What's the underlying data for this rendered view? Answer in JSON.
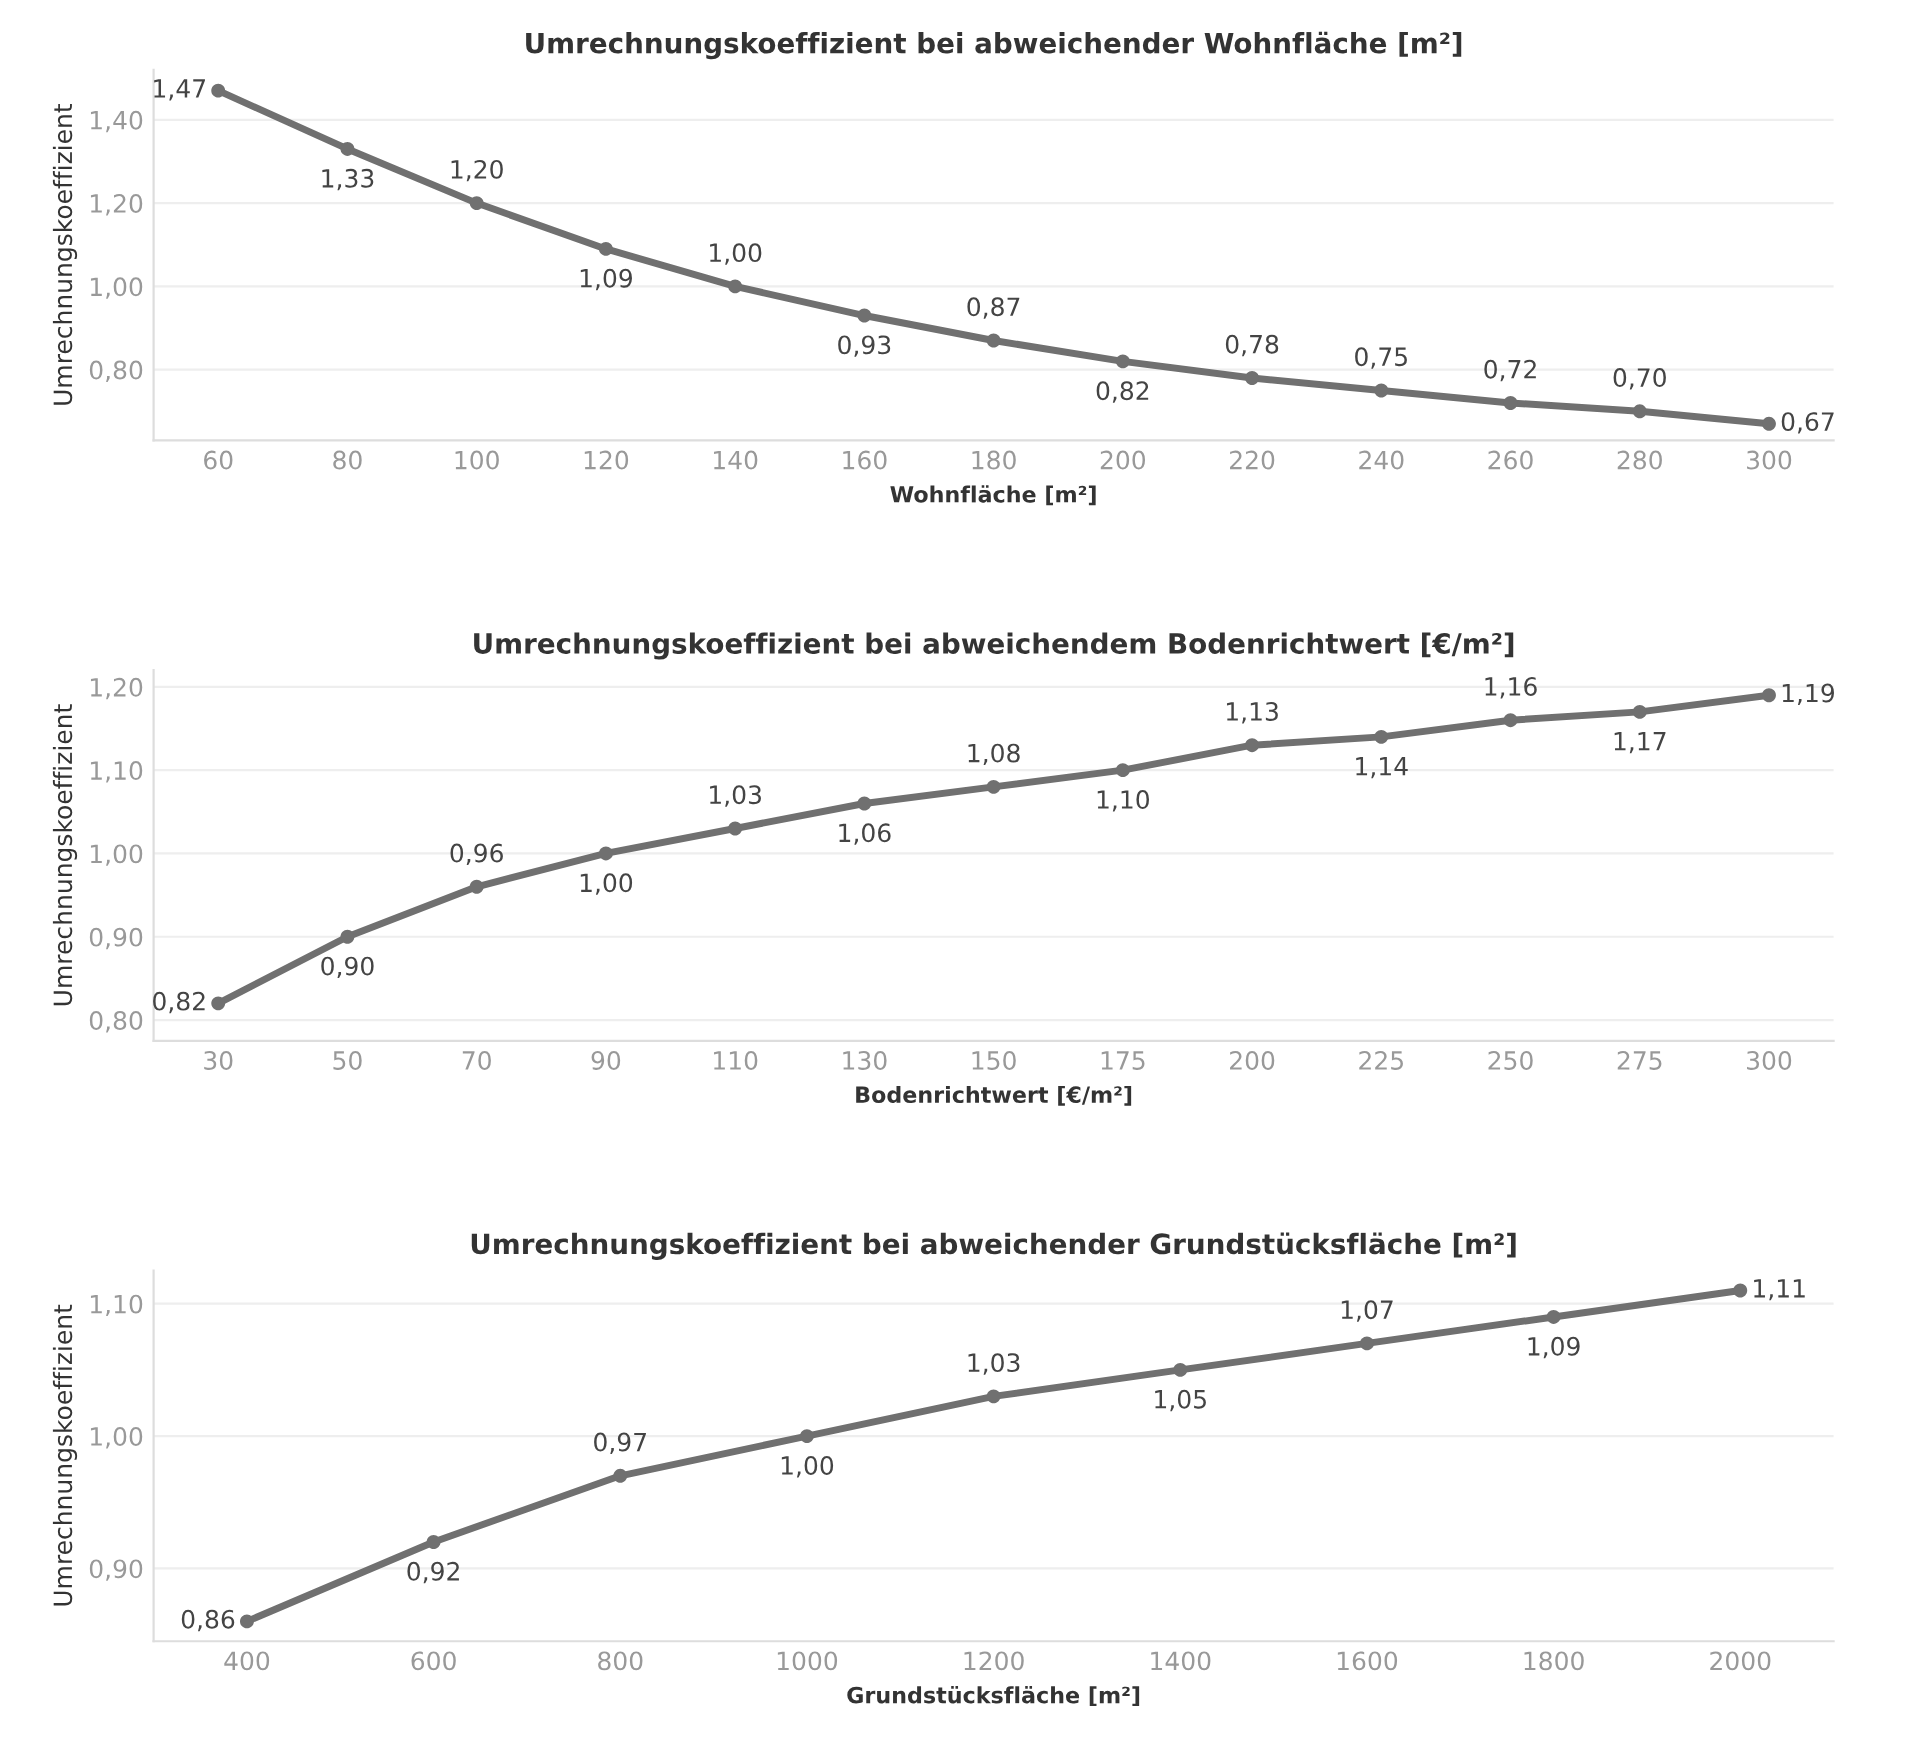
{
  "chart_data": [
    {
      "type": "line",
      "title": "Umrechnungskoeffizient bei abweichender Wohnfläche [m²]",
      "xlabel": "Wohnfläche [m²]",
      "ylabel": "Umrechnungskoeffizient",
      "categories": [
        "60",
        "80",
        "100",
        "120",
        "140",
        "160",
        "180",
        "200",
        "220",
        "240",
        "260",
        "280",
        "300"
      ],
      "series": [
        {
          "color": "#707070",
          "values": [
            1.47,
            1.33,
            1.2,
            1.09,
            1.0,
            0.93,
            0.87,
            0.82,
            0.78,
            0.75,
            0.72,
            0.7,
            0.67
          ],
          "value_labels": [
            "1,47",
            "1,33",
            "1,20",
            "1,09",
            "1,00",
            "0,93",
            "0,87",
            "0,82",
            "0,78",
            "0,75",
            "0,72",
            "0,70",
            "0,67"
          ]
        }
      ],
      "ylim": [
        0.63,
        1.52
      ],
      "yticks": [
        {
          "value": 0.8,
          "label": "0,80"
        },
        {
          "value": 1.0,
          "label": "1,00"
        },
        {
          "value": 1.2,
          "label": "1,20"
        },
        {
          "value": 1.4,
          "label": "1,40"
        }
      ],
      "grid": "y",
      "marker": "circle",
      "line_style": "solid",
      "legend": false
    },
    {
      "type": "line",
      "title": "Umrechnungskoeffizient bei abweichendem Bodenrichtwert [€/m²]",
      "xlabel": "Bodenrichtwert [€/m²]",
      "ylabel": "Umrechnungskoeffizient",
      "categories": [
        "30",
        "50",
        "70",
        "90",
        "110",
        "130",
        "150",
        "175",
        "200",
        "225",
        "250",
        "275",
        "300"
      ],
      "series": [
        {
          "color": "#707070",
          "values": [
            0.82,
            0.9,
            0.96,
            1.0,
            1.03,
            1.06,
            1.08,
            1.1,
            1.13,
            1.14,
            1.16,
            1.17,
            1.19
          ],
          "value_labels": [
            "0,82",
            "0,90",
            "0,96",
            "1,00",
            "1,03",
            "1,06",
            "1,08",
            "1,10",
            "1,13",
            "1,14",
            "1,16",
            "1,17",
            "1,19"
          ]
        }
      ],
      "ylim": [
        0.775,
        1.22
      ],
      "yticks": [
        {
          "value": 0.8,
          "label": "0,80"
        },
        {
          "value": 0.9,
          "label": "0,90"
        },
        {
          "value": 1.0,
          "label": "1,00"
        },
        {
          "value": 1.1,
          "label": "1,10"
        },
        {
          "value": 1.2,
          "label": "1,20"
        }
      ],
      "grid": "y",
      "marker": "circle",
      "line_style": "solid",
      "legend": false
    },
    {
      "type": "line",
      "title": "Umrechnungskoeffizient bei abweichender Grundstücksfläche [m²]",
      "xlabel": "Grundstücksfläche [m²]",
      "ylabel": "Umrechnungskoeffizient",
      "categories": [
        "400",
        "600",
        "800",
        "1000",
        "1200",
        "1400",
        "1600",
        "1800",
        "2000"
      ],
      "series": [
        {
          "color": "#707070",
          "values": [
            0.86,
            0.92,
            0.97,
            1.0,
            1.03,
            1.05,
            1.07,
            1.09,
            1.11
          ],
          "value_labels": [
            "0,86",
            "0,92",
            "0,97",
            "1,00",
            "1,03",
            "1,05",
            "1,07",
            "1,09",
            "1,11"
          ]
        }
      ],
      "ylim": [
        0.845,
        1.125
      ],
      "yticks": [
        {
          "value": 0.9,
          "label": "0,90"
        },
        {
          "value": 1.0,
          "label": "1,00"
        },
        {
          "value": 1.1,
          "label": "1,10"
        }
      ],
      "grid": "y",
      "marker": "circle",
      "line_style": "solid",
      "legend": false
    }
  ]
}
